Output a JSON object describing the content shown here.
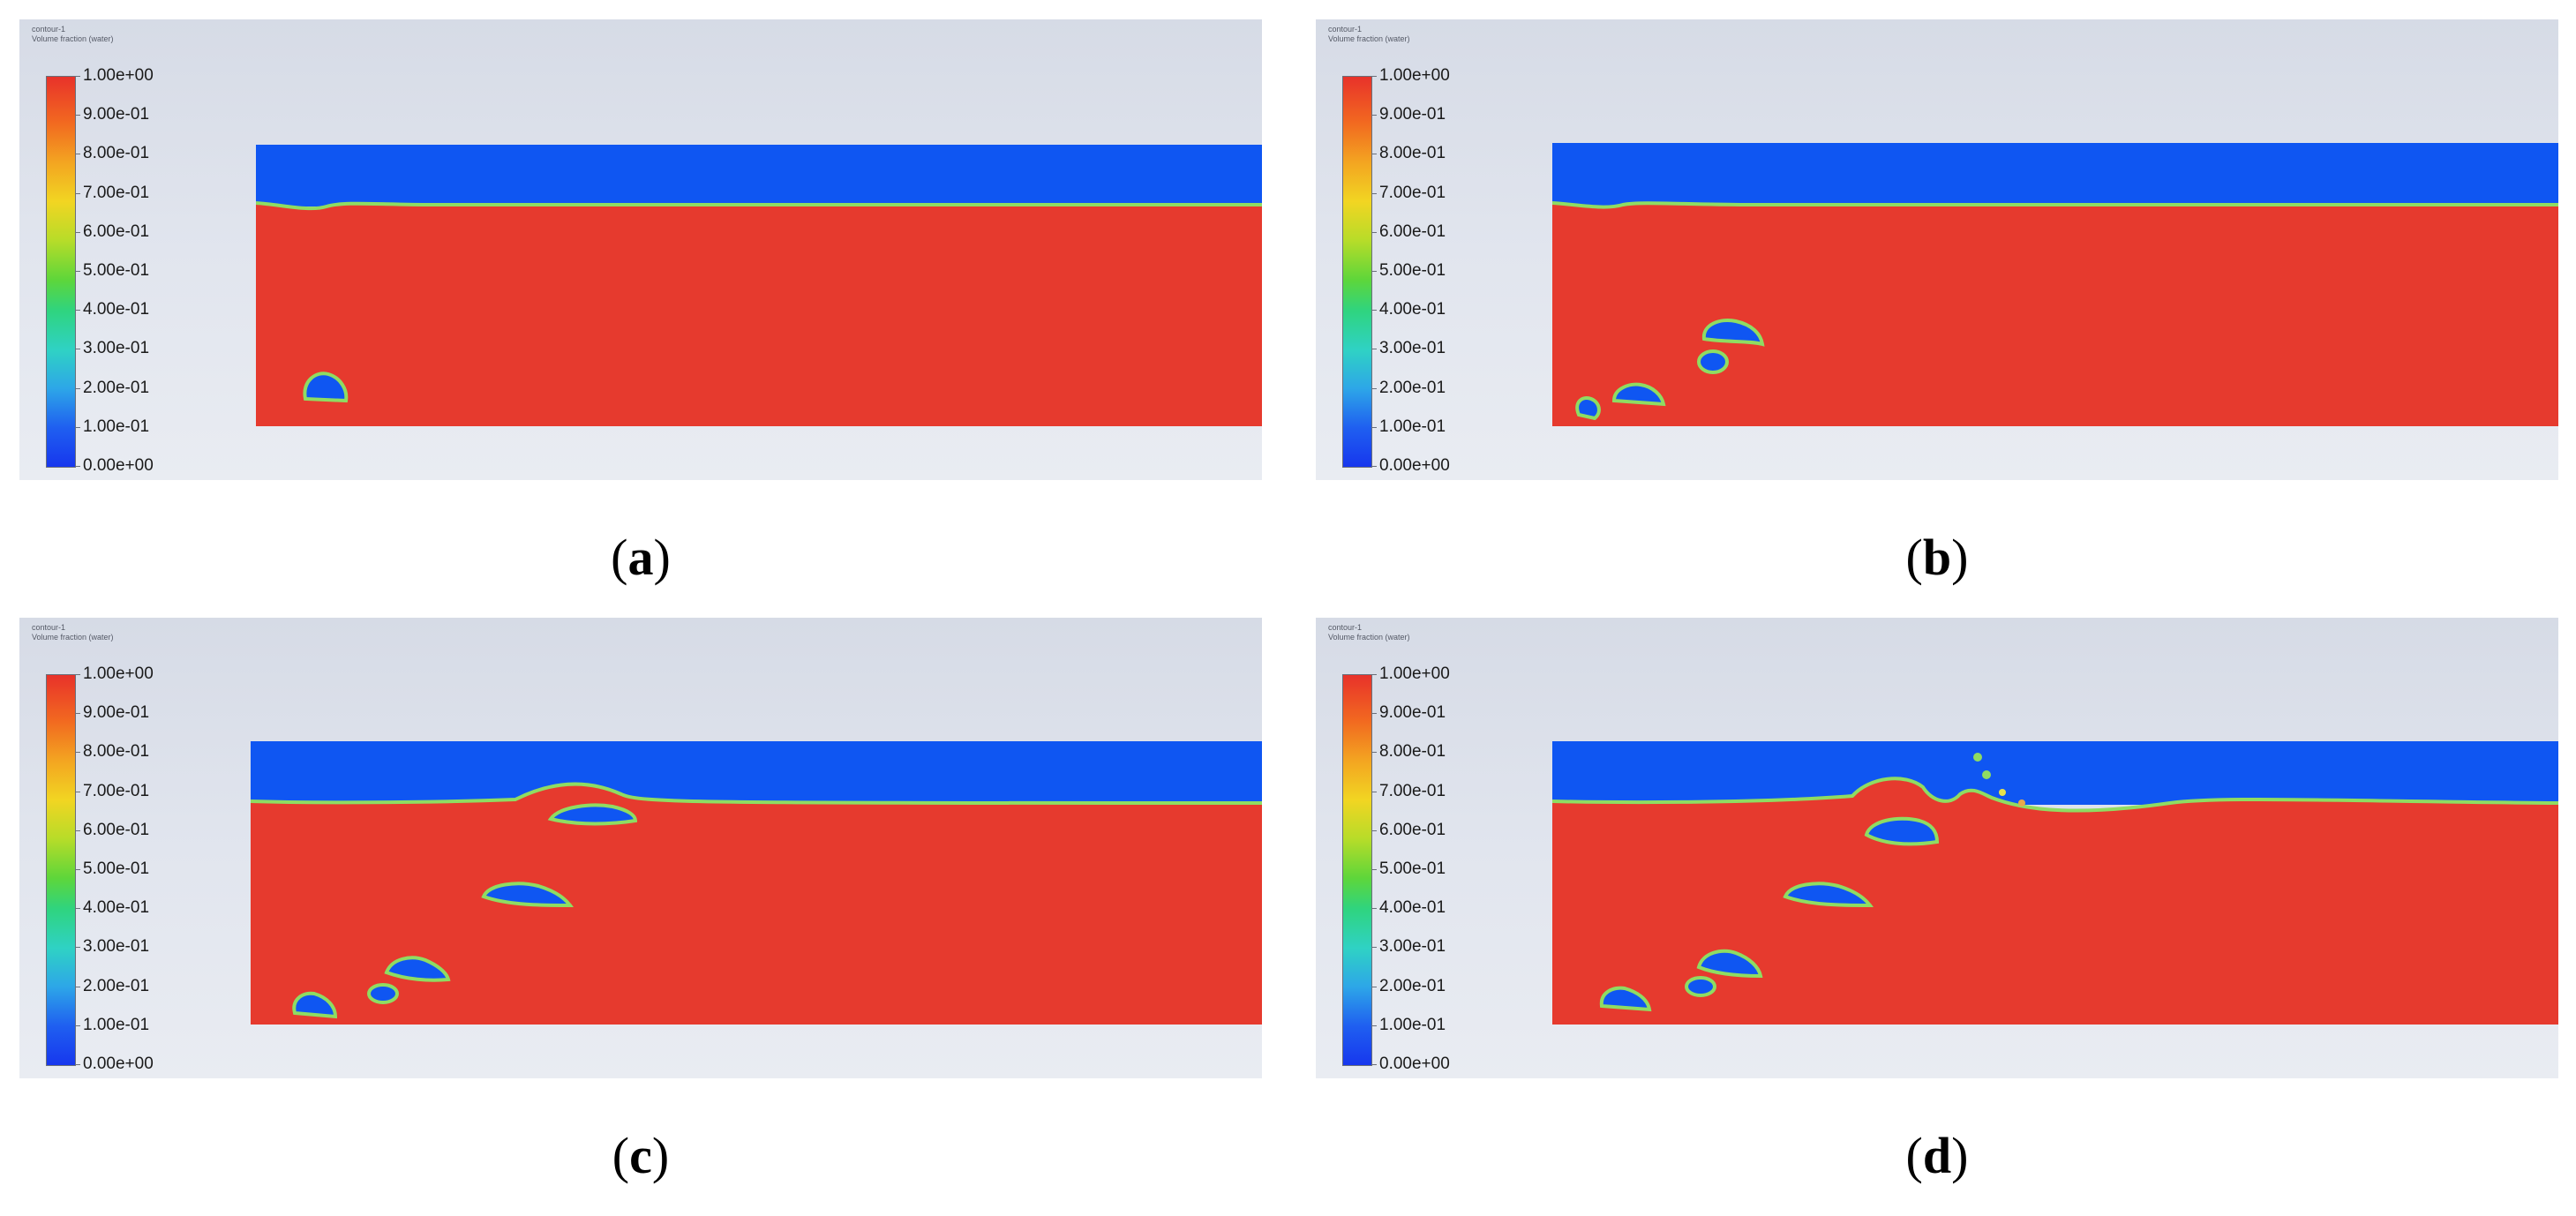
{
  "colors": {
    "water": "#e63a2e",
    "air": "#0f56f2",
    "interface": "#8fdc62",
    "interface_edge": "#e7e14c"
  },
  "legend": {
    "header_line1": "contour-1",
    "header_line2": "Volume fraction (water)",
    "ticks": [
      "1.00e+00",
      "9.00e-01",
      "8.00e-01",
      "7.00e-01",
      "6.00e-01",
      "5.00e-01",
      "4.00e-01",
      "3.00e-01",
      "2.00e-01",
      "1.00e-01",
      "0.00e+00"
    ],
    "min": 0,
    "max": 1
  },
  "panels": [
    {
      "id": "a",
      "caption_open": "(",
      "caption_letter": "a",
      "caption_close": ")"
    },
    {
      "id": "b",
      "caption_open": "(",
      "caption_letter": "b",
      "caption_close": ")"
    },
    {
      "id": "c",
      "caption_open": "(",
      "caption_letter": "c",
      "caption_close": ")"
    },
    {
      "id": "d",
      "caption_open": "(",
      "caption_letter": "d",
      "caption_close": ")"
    }
  ]
}
